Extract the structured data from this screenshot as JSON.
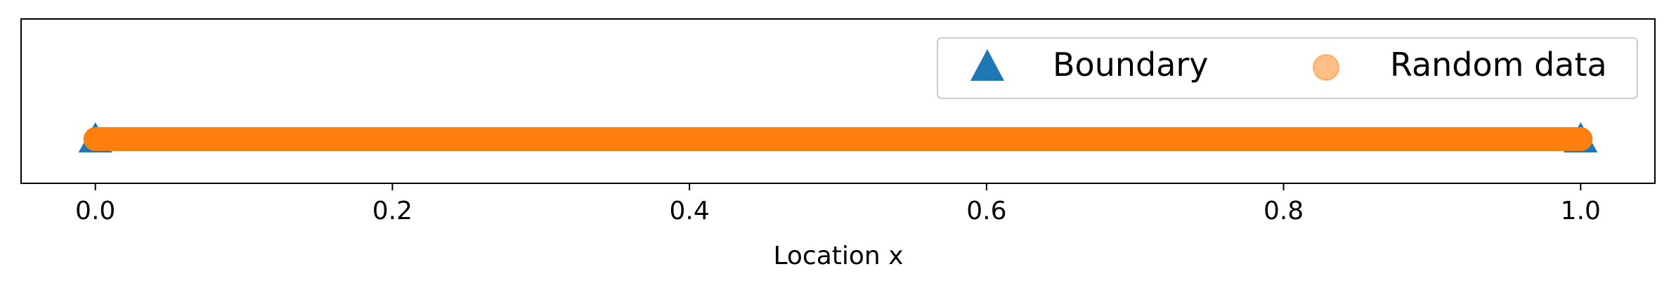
{
  "chart_data": {
    "type": "scatter",
    "title": "",
    "xlabel": "Location x",
    "ylabel": "",
    "xlim": [
      -0.05,
      1.05
    ],
    "ylim": [
      -1,
      1
    ],
    "xticks": [
      0.0,
      0.2,
      0.4,
      0.6,
      0.8,
      1.0
    ],
    "xtick_labels": [
      "0.0",
      "0.2",
      "0.4",
      "0.6",
      "0.8",
      "1.0"
    ],
    "grid": false,
    "legend": {
      "placement": "upper-right",
      "columns": 2
    },
    "series": [
      {
        "name": "Boundary",
        "marker": "triangle-up",
        "color": "#1f77b4",
        "x": [
          0.0,
          1.0
        ],
        "y": [
          0,
          0
        ]
      },
      {
        "name": "Random data",
        "marker": "circle",
        "color": "#ff7f0e",
        "legend_alpha": 0.5,
        "x_range": [
          0.0,
          1.0
        ],
        "y": 0,
        "dense": true
      }
    ]
  }
}
